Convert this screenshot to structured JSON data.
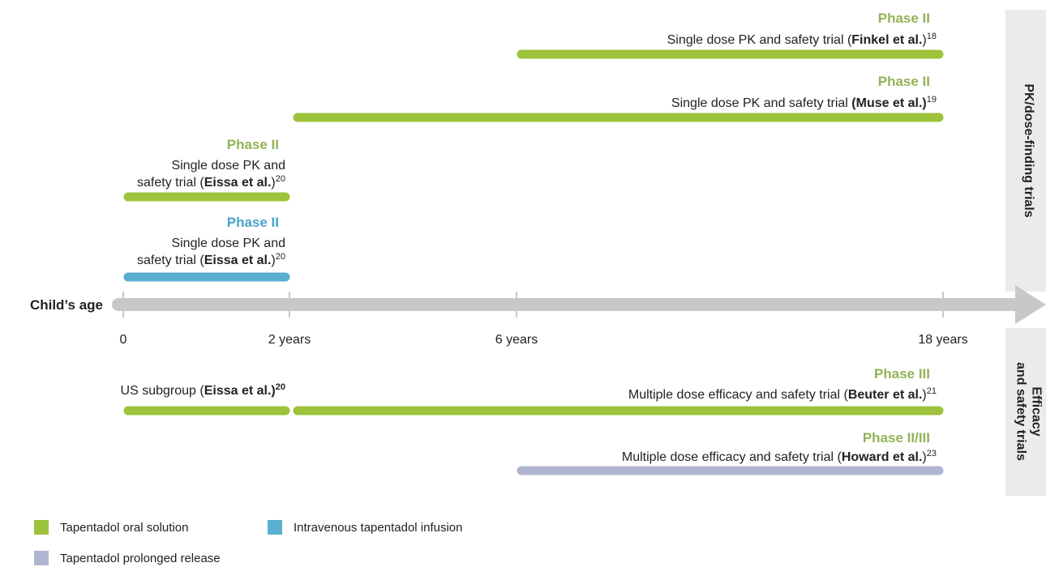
{
  "axis": {
    "label": "Child’s age",
    "ticks": [
      "0",
      "2 years",
      "6 years",
      "18 years"
    ]
  },
  "panels": [
    {
      "lines": [
        "PK/dose-finding trials"
      ]
    },
    {
      "lines": [
        "Efficacy",
        "and safety trials"
      ]
    }
  ],
  "trials": [
    {
      "phase": "Phase II",
      "lines": [
        [
          {
            "text": "Single dose PK and safety trial ("
          },
          {
            "text": "Finkel et al.",
            "style": "bold"
          },
          {
            "text": ")"
          },
          {
            "text": "18",
            "style": "sup"
          }
        ]
      ]
    },
    {
      "phase": "Phase II",
      "lines": [
        [
          {
            "text": "Single dose PK and safety trial "
          },
          {
            "text": "(Muse et al.)",
            "style": "bold"
          },
          {
            "text": "19",
            "style": "sup"
          }
        ]
      ]
    },
    {
      "phase": "Phase II",
      "lines": [
        [
          {
            "text": "Single dose PK and"
          }
        ],
        [
          {
            "text": "safety trial ("
          },
          {
            "text": "Eissa et al.",
            "style": "bold"
          },
          {
            "text": ")"
          },
          {
            "text": "20",
            "style": "sup"
          }
        ]
      ]
    },
    {
      "phase": "Phase II",
      "lines": [
        [
          {
            "text": "Single dose PK and"
          }
        ],
        [
          {
            "text": "safety trial ("
          },
          {
            "text": "Eissa et al.",
            "style": "bold"
          },
          {
            "text": ")"
          },
          {
            "text": "20",
            "style": "sup"
          }
        ]
      ]
    },
    {
      "lines": [
        [
          {
            "text": "US subgroup ("
          },
          {
            "text": "Eissa et al.)",
            "style": "bold"
          },
          {
            "text": "20",
            "style": "boldsup"
          }
        ]
      ]
    },
    {
      "phase": "Phase III",
      "lines": [
        [
          {
            "text": "Multiple dose efficacy and safety trial ("
          },
          {
            "text": "Beuter et al.",
            "style": "bold"
          },
          {
            "text": ")"
          },
          {
            "text": "21",
            "style": "sup"
          }
        ]
      ]
    },
    {
      "phase": "Phase II/III",
      "lines": [
        [
          {
            "text": "Multiple dose efficacy and safety trial ("
          },
          {
            "text": "Howard et al.",
            "style": "bold"
          },
          {
            "text": ")"
          },
          {
            "text": "23",
            "style": "sup"
          }
        ]
      ]
    }
  ],
  "legend": [
    {
      "label": "Tapentadol oral solution",
      "color": "#9dc23b"
    },
    {
      "label": "Intravenous tapentadol infusion",
      "color": "#5aaed0"
    },
    {
      "label": "Tapentadol prolonged release",
      "color": "#b0b5cf"
    }
  ]
}
